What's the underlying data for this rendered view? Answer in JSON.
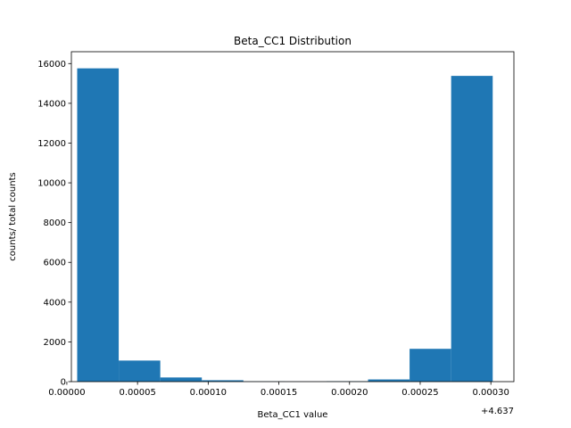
{
  "chart_data": {
    "type": "bar",
    "title": "Beta_CC1 Distribution",
    "xlabel": "Beta_CC1 value",
    "ylabel": "counts/ total counts",
    "x_offset_label": "+4.637",
    "bar_color": "#1f77b4",
    "xlim": [
      3.2e-06,
      0.0003163
    ],
    "ylim": [
      0,
      16596
    ],
    "x_ticks": [
      0,
      5e-05,
      0.0001,
      0.00015,
      0.0002,
      0.00025,
      0.0003
    ],
    "x_tick_labels": [
      "0.00000",
      "0.00005",
      "0.00010",
      "0.00015",
      "0.00020",
      "0.00025",
      "0.00030"
    ],
    "y_ticks": [
      0,
      2000,
      4000,
      6000,
      8000,
      10000,
      12000,
      14000,
      16000
    ],
    "y_tick_labels": [
      "0",
      "2000",
      "4000",
      "6000",
      "8000",
      "10000",
      "12000",
      "14000",
      "16000"
    ],
    "bins": [
      {
        "start": 7.3e-06,
        "end": 3.67e-05,
        "value": 15760
      },
      {
        "start": 3.67e-05,
        "end": 6.61e-05,
        "value": 1060
      },
      {
        "start": 6.61e-05,
        "end": 9.55e-05,
        "value": 210
      },
      {
        "start": 9.55e-05,
        "end": 0.0001249,
        "value": 70
      },
      {
        "start": 0.0001249,
        "end": 0.0001543,
        "value": 10
      },
      {
        "start": 0.0001543,
        "end": 0.0001837,
        "value": 5
      },
      {
        "start": 0.0001837,
        "end": 0.0002131,
        "value": 20
      },
      {
        "start": 0.0002131,
        "end": 0.0002425,
        "value": 110
      },
      {
        "start": 0.0002425,
        "end": 0.0002719,
        "value": 1650
      },
      {
        "start": 0.0002719,
        "end": 0.0003013,
        "value": 15380
      }
    ]
  }
}
